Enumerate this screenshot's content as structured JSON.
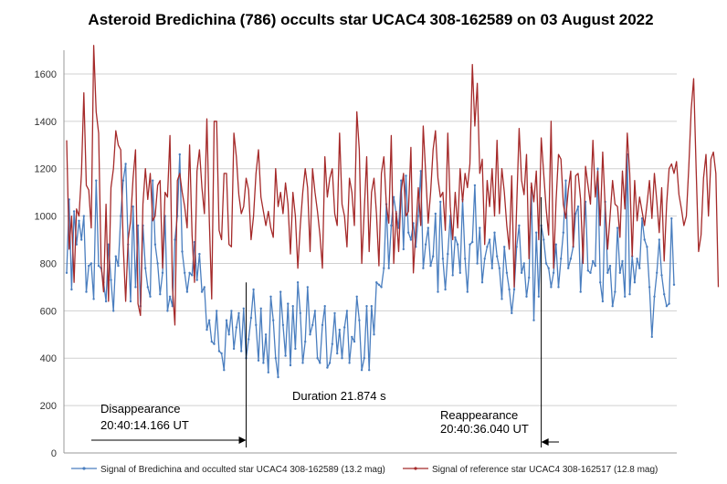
{
  "chart_data": {
    "type": "line",
    "title": "Asteroid Bredichina (786) occults star UCAC4 308-162589 on 03 August 2022",
    "xlabel": "",
    "ylabel": "",
    "ylim": [
      0,
      1700
    ],
    "yticks": [
      0,
      200,
      400,
      600,
      800,
      1000,
      1200,
      1400,
      1600
    ],
    "grid": true,
    "legend_position": "bottom",
    "series": [
      {
        "name": "Signal of Bredichina and occulted star UCAC4 308-162589 (13.2 mag)",
        "color": "#4a7ebf",
        "values": [
          760,
          1070,
          690,
          1020,
          880,
          980,
          900,
          1000,
          680,
          790,
          800,
          650,
          1150,
          790,
          780,
          720,
          640,
          880,
          730,
          600,
          830,
          790,
          1000,
          1150,
          1220,
          880,
          640,
          1040,
          700,
          960,
          620,
          960,
          780,
          700,
          660,
          1150,
          880,
          800,
          670,
          760,
          1000,
          600,
          660,
          620,
          900,
          1000,
          1260,
          850,
          760,
          680,
          760,
          750,
          890,
          730,
          840,
          680,
          700,
          520,
          560,
          470,
          460,
          600,
          430,
          420,
          350,
          560,
          500,
          600,
          440,
          530,
          590,
          430,
          610,
          400,
          480,
          570,
          690,
          540,
          390,
          610,
          380,
          500,
          340,
          660,
          560,
          400,
          320,
          680,
          540,
          410,
          630,
          370,
          620,
          440,
          720,
          590,
          380,
          470,
          700,
          500,
          540,
          600,
          400,
          380,
          540,
          620,
          360,
          380,
          460,
          590,
          420,
          520,
          400,
          530,
          600,
          380,
          490,
          470,
          660,
          560,
          350,
          400,
          620,
          350,
          620,
          500,
          720,
          710,
          700,
          780,
          1050,
          780,
          960,
          1080,
          1010,
          950,
          1150,
          860,
          1170,
          930,
          900,
          970,
          870,
          1000,
          1190,
          780,
          880,
          950,
          790,
          830,
          1010,
          680,
          1060,
          820,
          690,
          840,
          1000,
          750,
          910,
          880,
          760,
          1070,
          820,
          680,
          880,
          890,
          1130,
          800,
          950,
          720,
          820,
          870,
          900,
          780,
          930,
          830,
          780,
          650,
          870,
          760,
          690,
          590,
          690,
          870,
          960,
          760,
          800,
          660,
          740,
          1120,
          560,
          930,
          660,
          960,
          900,
          800,
          780,
          700,
          760,
          880,
          700,
          820,
          930,
          1150,
          780,
          820,
          870,
          1010,
          1040,
          680,
          880,
          1060,
          770,
          760,
          810,
          790,
          1200,
          720,
          640,
          1060,
          760,
          790,
          620,
          680,
          950,
          760,
          810,
          660,
          1260,
          670,
          830,
          720,
          820,
          780,
          990,
          900,
          870,
          700,
          490,
          660,
          760,
          900,
          750,
          670,
          620,
          630,
          990,
          710
        ],
        "note_text": []
      },
      {
        "name": "Signal of reference star UCAC4 308-162517 (12.8 mag)",
        "color": "#a52a2a",
        "values": [
          1320,
          860,
          1000,
          720,
          1030,
          1000,
          1180,
          1520,
          1130,
          1110,
          950,
          1720,
          1440,
          1350,
          800,
          680,
          1050,
          640,
          1120,
          1200,
          1360,
          1300,
          1280,
          880,
          640,
          900,
          980,
          1160,
          1280,
          630,
          580,
          1050,
          1200,
          1070,
          1180,
          980,
          1000,
          1130,
          1150,
          780,
          1100,
          1080,
          1340,
          700,
          540,
          1150,
          1180,
          1100,
          1040,
          950,
          1300,
          920,
          720,
          1190,
          1280,
          1120,
          1010,
          1410,
          980,
          650,
          1400,
          1400,
          940,
          900,
          1180,
          1180,
          880,
          870,
          1350,
          1250,
          1090,
          1010,
          1040,
          1160,
          1110,
          900,
          1000,
          1180,
          1280,
          1080,
          1020,
          960,
          1020,
          950,
          910,
          1200,
          1040,
          1100,
          1010,
          1140,
          1050,
          840,
          1100,
          1000,
          780,
          960,
          1100,
          1200,
          1120,
          850,
          1200,
          1100,
          1020,
          920,
          780,
          1250,
          1080,
          1160,
          1200,
          1010,
          960,
          1350,
          1050,
          1000,
          870,
          1160,
          1100,
          960,
          1440,
          1280,
          800,
          1020,
          1250,
          850,
          1100,
          1160,
          1010,
          790,
          1180,
          1250,
          1050,
          970,
          1340,
          800,
          1020,
          850,
          1100,
          1180,
          1000,
          1020,
          1290,
          760,
          940,
          1120,
          960,
          1380,
          1180,
          970,
          1100,
          1280,
          1360,
          1160,
          1080,
          1100,
          940,
          1350,
          1040,
          900,
          1100,
          950,
          1200,
          1060,
          1180,
          1120,
          1220,
          1640,
          1380,
          1560,
          1180,
          1240,
          880,
          1150,
          1040,
          1200,
          1000,
          1320,
          1010,
          1200,
          1100,
          960,
          860,
          1170,
          700,
          1040,
          1370,
          1150,
          1090,
          1260,
          820,
          1140,
          1060,
          1190,
          900,
          1330,
          1180,
          1030,
          920,
          1400,
          780,
          1060,
          1260,
          1240,
          1050,
          990,
          1110,
          1190,
          870,
          1170,
          1180,
          1070,
          800,
          1210,
          1130,
          1050,
          1320,
          1080,
          1190,
          960,
          1270,
          1040,
          860,
          1000,
          1150,
          1050,
          1040,
          910,
          1190,
          1030,
          1350,
          1180,
          830,
          1150,
          980,
          1080,
          1020,
          960,
          1050,
          1150,
          990,
          1180,
          1060,
          930,
          1120,
          810,
          1050,
          1200,
          1220,
          1180,
          1230,
          1090,
          1030,
          960,
          1000,
          1210,
          1450,
          1580,
          1200,
          850,
          920,
          1160,
          1260,
          1000,
          1240,
          1270,
          1180,
          700
        ]
      }
    ],
    "annotations": {
      "disappearance_label": "Disappearance",
      "disappearance_time": "20:40:14.166 UT",
      "duration_label": "Duration 21.874 s",
      "reappearance_label": "Reappearance",
      "reappearance_time": "20:40:36.040 UT",
      "disappearance_index": 73,
      "reappearance_index": 193
    }
  }
}
